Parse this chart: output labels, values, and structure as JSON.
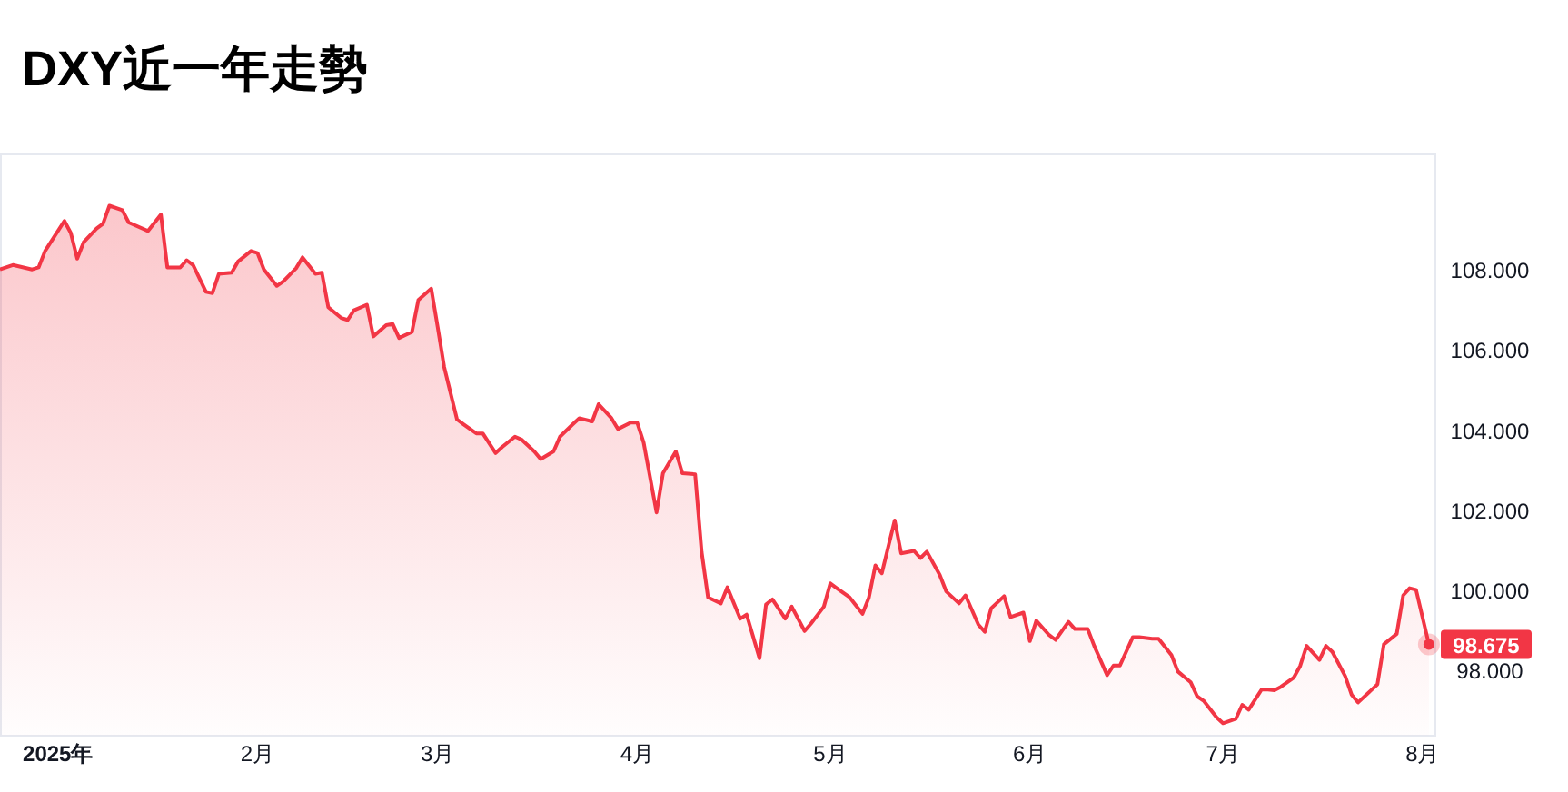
{
  "chart_data": {
    "type": "area",
    "title": "DXY近一年走勢",
    "color": "#f23645",
    "x": [
      "2024-12-23",
      "2024-12-25",
      "2024-12-28",
      "2024-12-29",
      "2024-12-30",
      "2025-01-02",
      "2025-01-03",
      "2025-01-04",
      "2025-01-05",
      "2025-01-07",
      "2025-01-08",
      "2025-01-09",
      "2025-01-11",
      "2025-01-12",
      "2025-01-15",
      "2025-01-17",
      "2025-01-18",
      "2025-01-20",
      "2025-01-21",
      "2025-01-22",
      "2025-01-24",
      "2025-01-25",
      "2025-01-26",
      "2025-01-28",
      "2025-01-29",
      "2025-01-31",
      "2025-02-01",
      "2025-02-02",
      "2025-02-04",
      "2025-02-05",
      "2025-02-07",
      "2025-02-08",
      "2025-02-10",
      "2025-02-11",
      "2025-02-12",
      "2025-02-14",
      "2025-02-15",
      "2025-02-16",
      "2025-02-18",
      "2025-02-19",
      "2025-02-21",
      "2025-02-22",
      "2025-02-23",
      "2025-02-25",
      "2025-02-26",
      "2025-02-28",
      "2025-03-01",
      "2025-03-02",
      "2025-03-04",
      "2025-03-05",
      "2025-03-07",
      "2025-03-08",
      "2025-03-10",
      "2025-03-11",
      "2025-03-13",
      "2025-03-14",
      "2025-03-16",
      "2025-03-17",
      "2025-03-19",
      "2025-03-20",
      "2025-03-22",
      "2025-03-23",
      "2025-03-25",
      "2025-03-26",
      "2025-03-28",
      "2025-03-29",
      "2025-03-31",
      "2025-04-01",
      "2025-04-02",
      "2025-04-04",
      "2025-04-05",
      "2025-04-07",
      "2025-04-08",
      "2025-04-10",
      "2025-04-11",
      "2025-04-12",
      "2025-04-14",
      "2025-04-15",
      "2025-04-17",
      "2025-04-18",
      "2025-04-20",
      "2025-04-21",
      "2025-04-22",
      "2025-04-24",
      "2025-04-25",
      "2025-04-27",
      "2025-04-28",
      "2025-04-30",
      "2025-05-01",
      "2025-05-02",
      "2025-05-04",
      "2025-05-06",
      "2025-05-07",
      "2025-05-08",
      "2025-05-09",
      "2025-05-11",
      "2025-05-12",
      "2025-05-14",
      "2025-05-15",
      "2025-05-16",
      "2025-05-18",
      "2025-05-19",
      "2025-05-21",
      "2025-05-22",
      "2025-05-24",
      "2025-05-25",
      "2025-05-26",
      "2025-05-28",
      "2025-05-29",
      "2025-05-31",
      "2025-06-01",
      "2025-06-02",
      "2025-06-04",
      "2025-06-05",
      "2025-06-07",
      "2025-06-08",
      "2025-06-10",
      "2025-06-11",
      "2025-06-13",
      "2025-06-14",
      "2025-06-15",
      "2025-06-17",
      "2025-06-18",
      "2025-06-20",
      "2025-06-21",
      "2025-06-23",
      "2025-06-24",
      "2025-06-26",
      "2025-06-27",
      "2025-06-28",
      "2025-06-30",
      "2025-07-01",
      "2025-07-03",
      "2025-07-04",
      "2025-07-05",
      "2025-07-07",
      "2025-07-08",
      "2025-07-09",
      "2025-07-10",
      "2025-07-12",
      "2025-07-13",
      "2025-07-14",
      "2025-07-16",
      "2025-07-17",
      "2025-07-18",
      "2025-07-20",
      "2025-07-21",
      "2025-07-22",
      "2025-07-24",
      "2025-07-25",
      "2025-07-26",
      "2025-07-28",
      "2025-07-29",
      "2025-07-30",
      "2025-07-31",
      "2025-08-02"
    ],
    "values": [
      108.03,
      108.14,
      108.03,
      108.08,
      108.49,
      109.24,
      108.94,
      108.3,
      108.71,
      109.05,
      109.17,
      109.62,
      109.51,
      109.2,
      108.99,
      109.4,
      108.08,
      108.08,
      108.26,
      108.14,
      107.47,
      107.44,
      107.92,
      107.95,
      108.23,
      108.49,
      108.44,
      108.03,
      107.62,
      107.73,
      108.06,
      108.33,
      107.92,
      107.95,
      107.09,
      106.82,
      106.77,
      107.01,
      107.15,
      106.36,
      106.64,
      106.67,
      106.32,
      106.47,
      107.27,
      107.55,
      106.59,
      105.6,
      104.29,
      104.17,
      103.94,
      103.94,
      103.45,
      103.6,
      103.86,
      103.79,
      103.49,
      103.3,
      103.49,
      103.86,
      104.17,
      104.32,
      104.24,
      104.67,
      104.32,
      104.05,
      104.21,
      104.21,
      103.71,
      101.97,
      102.95,
      103.49,
      102.95,
      102.92,
      100.99,
      99.85,
      99.7,
      100.1,
      99.32,
      99.42,
      98.33,
      99.67,
      99.8,
      99.32,
      99.62,
      99.01,
      99.2,
      99.62,
      100.2,
      100.08,
      99.85,
      99.44,
      99.85,
      100.65,
      100.45,
      101.77,
      100.95,
      101.01,
      100.83,
      100.99,
      100.41,
      100.0,
      99.7,
      99.9,
      99.17,
      98.99,
      99.58,
      99.88,
      99.36,
      99.47,
      98.76,
      99.27,
      98.91,
      98.79,
      99.24,
      99.06,
      99.06,
      98.64,
      97.91,
      98.15,
      98.15,
      98.86,
      98.86,
      98.82,
      98.82,
      98.41,
      98.0,
      97.73,
      97.38,
      97.27,
      96.86,
      96.71,
      96.82,
      97.17,
      97.05,
      97.55,
      97.55,
      97.53,
      97.62,
      97.85,
      98.14,
      98.64,
      98.29,
      98.64,
      98.49,
      97.88,
      97.42,
      97.23,
      97.53,
      97.68,
      98.68,
      98.94,
      99.9,
      100.08,
      100.04,
      98.675
    ],
    "value_labels": [
      null,
      null,
      null,
      null,
      null,
      null,
      null,
      null,
      null,
      null,
      null,
      null,
      null,
      null,
      null,
      null,
      null,
      null,
      null,
      null,
      null,
      null,
      null,
      null,
      null,
      null,
      null,
      null,
      null,
      null,
      null,
      null,
      null,
      null,
      null,
      null,
      null,
      null,
      null,
      null,
      null,
      null,
      null,
      null,
      null,
      null,
      null,
      null,
      null,
      null,
      null,
      null,
      null,
      null,
      null,
      null,
      null,
      null,
      null,
      null,
      null,
      null,
      null,
      null,
      null,
      null,
      null,
      null,
      null,
      null,
      null,
      null,
      null,
      null,
      null,
      null,
      null,
      null,
      null,
      null,
      null,
      null,
      null,
      null,
      null,
      null,
      null,
      null,
      null,
      null,
      null,
      null,
      null,
      null,
      null,
      null,
      null,
      null,
      null,
      null,
      null,
      null,
      null,
      null,
      null,
      null,
      null,
      null,
      null,
      null,
      null,
      null,
      null,
      null,
      null,
      null,
      null,
      null,
      null,
      null,
      null,
      null,
      null,
      null,
      null,
      null,
      null,
      null,
      null,
      null,
      null,
      null,
      null,
      null,
      null,
      null,
      null,
      null,
      null,
      null,
      null,
      null,
      null,
      null,
      null,
      null,
      null,
      null,
      null,
      null,
      null,
      null,
      null,
      null,
      null,
      "98.675"
    ],
    "xticks": [
      {
        "value": "2025-01-01",
        "label": "2025年"
      },
      {
        "value": "2025-02-01",
        "label": "2月"
      },
      {
        "value": "2025-03-01",
        "label": "3月"
      },
      {
        "value": "2025-04-01",
        "label": "4月"
      },
      {
        "value": "2025-05-01",
        "label": "5月"
      },
      {
        "value": "2025-06-01",
        "label": "6月"
      },
      {
        "value": "2025-07-01",
        "label": "7月"
      },
      {
        "value": "2025-08-01",
        "label": "8月"
      }
    ],
    "xlim": [
      "2024-12-23",
      "2025-08-03"
    ],
    "ylim": [
      96.4,
      110.9
    ],
    "yticks": [
      {
        "value": 98,
        "label": "98.000"
      },
      {
        "value": 100,
        "label": "100.000"
      },
      {
        "value": 102,
        "label": "102.000"
      },
      {
        "value": 104,
        "label": "104.000"
      },
      {
        "value": 106,
        "label": "106.000"
      },
      {
        "value": 108,
        "label": "108.000"
      }
    ]
  }
}
